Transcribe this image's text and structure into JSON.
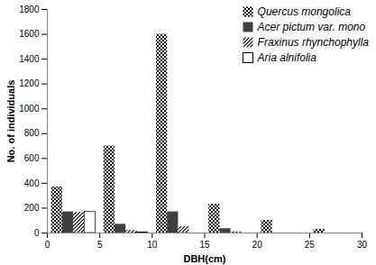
{
  "chart_data": {
    "type": "bar",
    "x_label": "DBH(cm)",
    "y_label": "No. of individuals",
    "x": [
      2.5,
      7.5,
      12.5,
      17.5,
      22.5,
      27.5
    ],
    "series": [
      {
        "name": "Quercus mongolica",
        "color": "#000000",
        "values": [
          370,
          700,
          1600,
          230,
          100,
          30
        ]
      },
      {
        "name": "Acer pictum var. mono",
        "color": "#404040",
        "values": [
          170,
          70,
          170,
          35,
          0,
          0
        ]
      },
      {
        "name": "Fraxinus rhynchophylla",
        "color": "#000000",
        "values": [
          165,
          20,
          50,
          10,
          0,
          0
        ]
      },
      {
        "name": "Aria alnifolia",
        "color": "#ffffff",
        "values": [
          170,
          5,
          0,
          0,
          0,
          0
        ]
      }
    ],
    "xlim": [
      0,
      30
    ],
    "xticks": [
      0,
      5,
      10,
      15,
      20,
      25,
      30
    ],
    "ylim": [
      0,
      1800
    ],
    "yticks": [
      0,
      200,
      400,
      600,
      800,
      1000,
      1200,
      1400,
      1600,
      1800
    ],
    "legend": "top-right",
    "grid": false
  }
}
